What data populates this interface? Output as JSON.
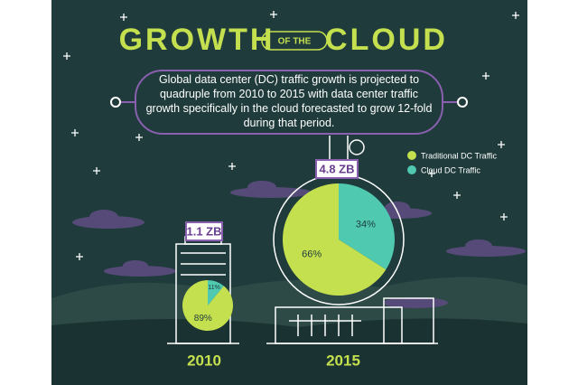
{
  "title": {
    "main_left": "GROWTH",
    "connector": "OF THE",
    "main_right": "CLOUD"
  },
  "description": "Global data center (DC) traffic growth is projected to quadruple from 2010 to 2015 with data center traffic growth specifically in the cloud forecasted to grow 12-fold during that period.",
  "chart_data": [
    {
      "type": "pie",
      "title": "2010",
      "total_label": "1.1 ZB",
      "categories": [
        "Traditional DC Traffic",
        "Cloud DC Traffic"
      ],
      "values": [
        89,
        11
      ],
      "value_labels": [
        "89%",
        "11%"
      ],
      "colors": [
        "#c5e04e",
        "#4fc9b0"
      ]
    },
    {
      "type": "pie",
      "title": "2015",
      "total_label": "4.8 ZB",
      "categories": [
        "Traditional DC Traffic",
        "Cloud DC Traffic"
      ],
      "values": [
        66,
        34
      ],
      "value_labels": [
        "66%",
        "34%"
      ],
      "colors": [
        "#c5e04e",
        "#4fc9b0"
      ],
      "legend": "top-right"
    }
  ]
}
